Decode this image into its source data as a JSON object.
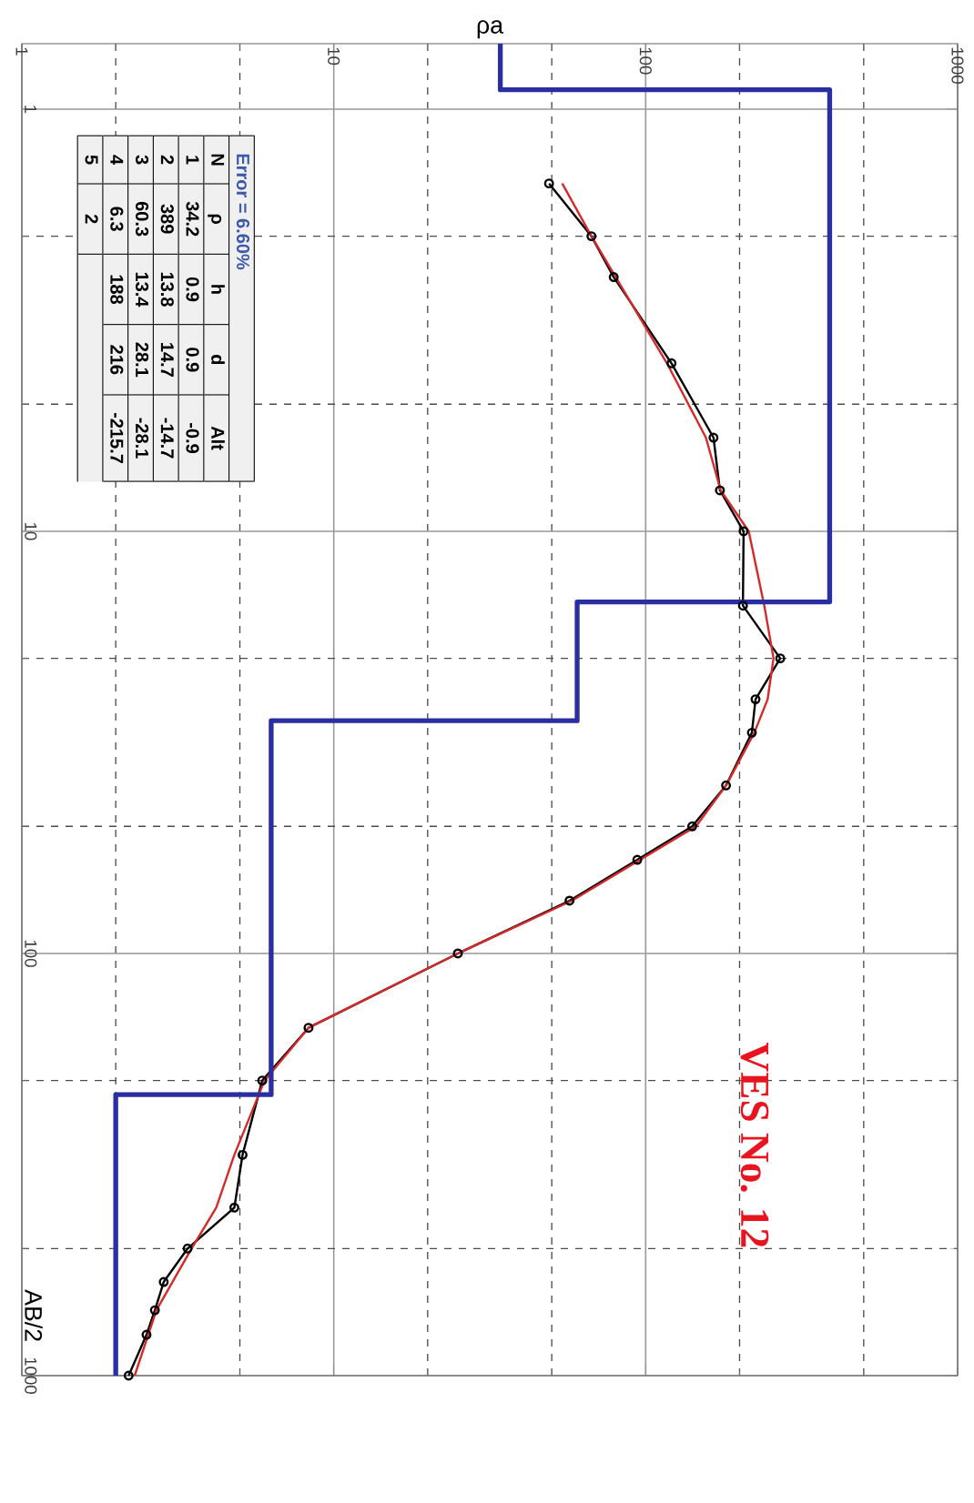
{
  "chart_data": {
    "type": "line",
    "title": "VES No. 12",
    "xlabel": "ρa",
    "ylabel": "AB/2",
    "log": "xy",
    "grid": true,
    "xlim": [
      1,
      1000
    ],
    "ylim": [
      1000,
      0.7
    ],
    "xticks": [
      1,
      10,
      100,
      1000
    ],
    "yticks": [
      1,
      10,
      100,
      1000
    ],
    "series": [
      {
        "type": "line",
        "color": "#000000",
        "marker": "circle",
        "x": [
          49,
          67,
          79,
          121,
          165,
          173,
          206,
          205,
          270,
          225,
          219,
          181,
          141,
          94,
          57,
          25,
          8.3,
          5.9,
          5.1,
          4.8,
          3.4,
          2.85,
          2.67,
          2.51,
          2.2
        ],
        "values": [
          1.5,
          2,
          2.5,
          4,
          6,
          8,
          10,
          15,
          20,
          25,
          30,
          40,
          50,
          60,
          75,
          100,
          150,
          200,
          300,
          400,
          500,
          600,
          700,
          800,
          1000
        ]
      },
      {
        "type": "line",
        "color": "#d42a2a",
        "x": [
          54,
          67,
          117,
          156,
          174,
          214,
          240,
          257,
          246,
          223,
          181,
          145,
          96,
          58,
          25,
          8.3,
          6,
          4.8,
          4.2,
          3.5,
          2.7,
          2.3
        ],
        "values": [
          1.5,
          2,
          4,
          6,
          8,
          10,
          15,
          20,
          25,
          30,
          40,
          50,
          60,
          75,
          100,
          150,
          200,
          300,
          400,
          500,
          700,
          1000
        ]
      },
      {
        "type": "step",
        "color": "#2b2ea0",
        "x": [
          34.2,
          389,
          60.3,
          6.3,
          2,
          2
        ],
        "values": [
          0.7,
          0.9,
          14.7,
          28.1,
          216,
          1000
        ]
      }
    ],
    "annotations": [
      "Error = 6.60%",
      "N",
      "ρ",
      "h",
      "d",
      "Alt",
      "1",
      "34.2",
      "0.9",
      "0.9",
      "-0.9",
      "2",
      "389",
      "13.8",
      "14.7",
      "-14.7",
      "3",
      "60.3",
      "13.4",
      "28.1",
      "-28.1",
      "4",
      "6.3",
      "188",
      "216",
      "-215.7",
      "5",
      "2"
    ]
  }
}
